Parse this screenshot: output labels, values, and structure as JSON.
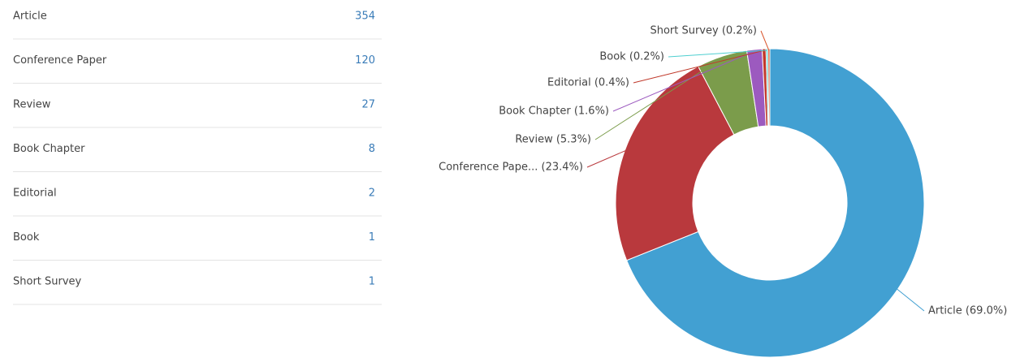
{
  "table": {
    "rows": [
      [
        "Article",
        "354"
      ],
      [
        "Conference Paper",
        "120"
      ],
      [
        "Review",
        "27"
      ],
      [
        "Book Chapter",
        "8"
      ],
      [
        "Editorial",
        "2"
      ],
      [
        "Book",
        "1"
      ],
      [
        "Short Survey",
        "1"
      ]
    ]
  },
  "chart_data": {
    "type": "pie",
    "values": [
      69.0,
      23.4,
      5.3,
      1.6,
      0.4,
      0.2,
      0.2
    ],
    "value_labels": [
      "Article (69.0%)",
      "Conference Pape... (23.4%)",
      "Review (5.3%)",
      "Book Chapter (1.6%)",
      "Editorial (0.4%)",
      "Book (0.2%)",
      "Short Survey (0.2%)"
    ],
    "colors": [
      "#42a0d2",
      "#b9393d",
      "#7b9c4b",
      "#9c5abf",
      "#c0392b",
      "#4fcfd0",
      "#d9532a"
    ]
  }
}
